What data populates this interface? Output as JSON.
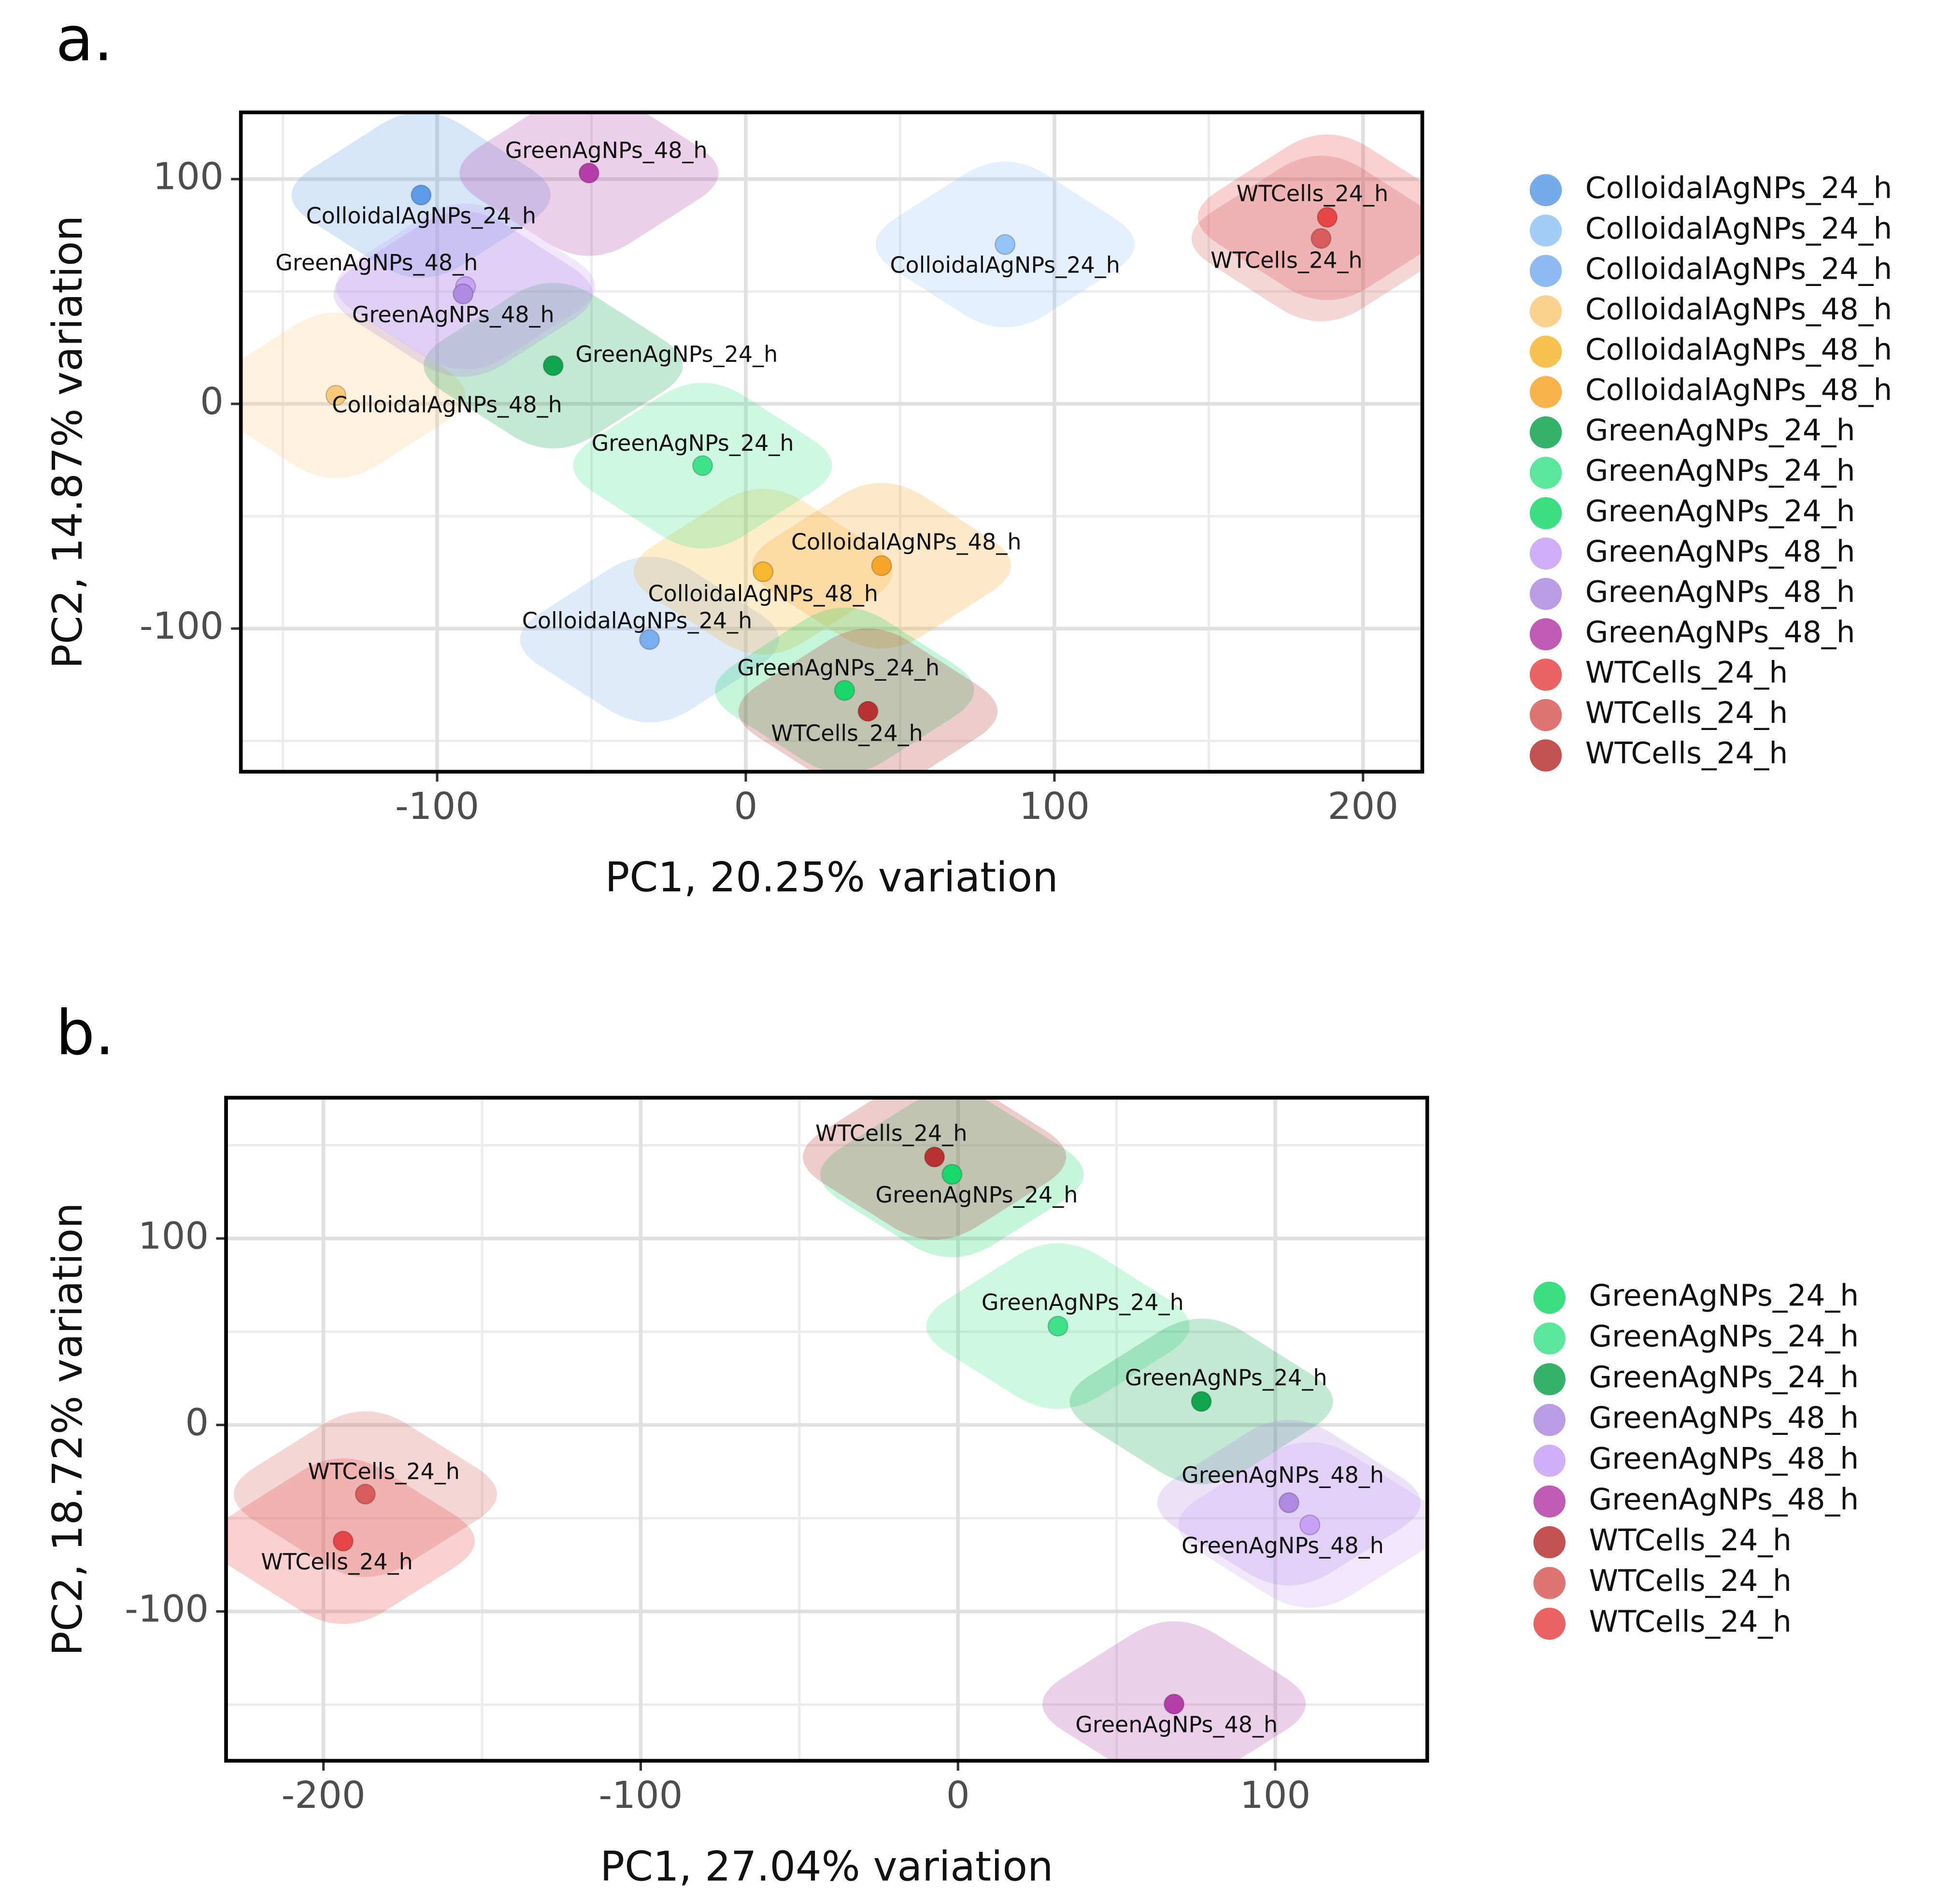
{
  "chart_data": [
    {
      "type": "scatter",
      "panel": "a.",
      "xlabel": "PC1, 20.25% variation",
      "ylabel": "PC2, 14.87% variation",
      "xlim": [
        -163.6,
        219.2
      ],
      "ylim": [
        -163.7,
        129.7
      ],
      "xticks": [
        -100,
        0,
        100,
        200
      ],
      "yticks": [
        -100,
        0,
        100
      ],
      "grid": true,
      "legend": "right",
      "series": [
        {
          "name": "ColloidalAgNPs_24_h",
          "color": "#5d9be8",
          "x": [
            -105.2
          ],
          "y": [
            92.9
          ]
        },
        {
          "name": "ColloidalAgNPs_24_h",
          "color": "#92c4f8",
          "x": [
            84.0
          ],
          "y": [
            70.9
          ]
        },
        {
          "name": "ColloidalAgNPs_24_h",
          "color": "#7aaef0",
          "x": [
            -31.2
          ],
          "y": [
            -104.9
          ]
        },
        {
          "name": "ColloidalAgNPs_48_h",
          "color": "#fbc97a",
          "x": [
            -132.8
          ],
          "y": [
            3.8
          ]
        },
        {
          "name": "ColloidalAgNPs_48_h",
          "color": "#f7b731",
          "x": [
            5.6
          ],
          "y": [
            -74.7
          ]
        },
        {
          "name": "ColloidalAgNPs_48_h",
          "color": "#f9a52a",
          "x": [
            44.0
          ],
          "y": [
            -72.0
          ]
        },
        {
          "name": "GreenAgNPs_24_h",
          "color": "#10a54f",
          "x": [
            -62.4
          ],
          "y": [
            17.0
          ]
        },
        {
          "name": "GreenAgNPs_24_h",
          "color": "#3ee28a",
          "x": [
            -14.0
          ],
          "y": [
            -27.5
          ]
        },
        {
          "name": "GreenAgNPs_24_h",
          "color": "#19d86a",
          "x": [
            32.0
          ],
          "y": [
            -127.5
          ]
        },
        {
          "name": "GreenAgNPs_48_h",
          "color": "#c9a1f7",
          "x": [
            -90.8
          ],
          "y": [
            52.2
          ]
        },
        {
          "name": "GreenAgNPs_48_h",
          "color": "#b08ae0",
          "x": [
            -91.6
          ],
          "y": [
            48.9
          ]
        },
        {
          "name": "GreenAgNPs_48_h",
          "color": "#b43ea8",
          "x": [
            -50.8
          ],
          "y": [
            102.7
          ]
        },
        {
          "name": "WTCells_24_h",
          "color": "#e84646",
          "x": [
            188.4
          ],
          "y": [
            83.0
          ]
        },
        {
          "name": "WTCells_24_h",
          "color": "#d95c5c",
          "x": [
            186.4
          ],
          "y": [
            73.6
          ]
        },
        {
          "name": "WTCells_24_h",
          "color": "#b83232",
          "x": [
            39.6
          ],
          "y": [
            -136.8
          ]
        }
      ]
    },
    {
      "type": "scatter",
      "panel": "b.",
      "xlabel": "PC1, 27.04% variation",
      "ylabel": "PC2, 18.72% variation",
      "xlim": [
        -230.7,
        147.9
      ],
      "ylim": [
        -180.1,
        175.5
      ],
      "xticks": [
        -200,
        -100,
        0,
        100
      ],
      "yticks": [
        -100,
        0,
        100
      ],
      "grid": true,
      "legend": "right",
      "series": [
        {
          "name": "GreenAgNPs_24_h",
          "color": "#19d86a",
          "x": [
            -1.9
          ],
          "y": [
            134.4
          ]
        },
        {
          "name": "GreenAgNPs_24_h",
          "color": "#3ee28a",
          "x": [
            31.5
          ],
          "y": [
            53.0
          ]
        },
        {
          "name": "GreenAgNPs_24_h",
          "color": "#10a54f",
          "x": [
            76.7
          ],
          "y": [
            12.6
          ]
        },
        {
          "name": "GreenAgNPs_48_h",
          "color": "#b08ae0",
          "x": [
            104.3
          ],
          "y": [
            -41.7
          ]
        },
        {
          "name": "GreenAgNPs_48_h",
          "color": "#c9a1f7",
          "x": [
            110.9
          ],
          "y": [
            -53.6
          ]
        },
        {
          "name": "GreenAgNPs_48_h",
          "color": "#b43ea8",
          "x": [
            68.1
          ],
          "y": [
            -149.7
          ]
        },
        {
          "name": "WTCells_24_h",
          "color": "#b83232",
          "x": [
            -7.4
          ],
          "y": [
            143.7
          ]
        },
        {
          "name": "WTCells_24_h",
          "color": "#d95c5c",
          "x": [
            -186.8
          ],
          "y": [
            -37.1
          ]
        },
        {
          "name": "WTCells_24_h",
          "color": "#e84646",
          "x": [
            -193.8
          ],
          "y": [
            -62.3
          ]
        }
      ]
    }
  ]
}
